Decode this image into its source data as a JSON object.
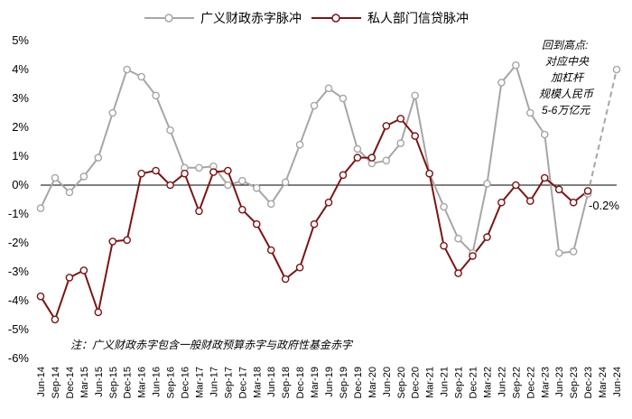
{
  "chart_data": {
    "type": "line",
    "ylim": [
      -6,
      5
    ],
    "y_ticks": [
      5,
      4,
      3,
      2,
      1,
      0,
      -1,
      -2,
      -3,
      -4,
      -5,
      -6
    ],
    "y_tick_labels": [
      "5%",
      "4%",
      "3%",
      "2%",
      "1%",
      "0%",
      "-1%",
      "-2%",
      "-3%",
      "-4%",
      "-5%",
      "-6%"
    ],
    "x_tick_labels": [
      "Jun-14",
      "Sep-14",
      "Dec-14",
      "Mar-15",
      "Jun-15",
      "Sep-15",
      "Dec-15",
      "Mar-16",
      "Jun-16",
      "Sep-16",
      "Dec-16",
      "Mar-17",
      "Jun-17",
      "Sep-17",
      "Dec-17",
      "Mar-18",
      "Jun-18",
      "Sep-18",
      "Dec-18",
      "Mar-19",
      "Jun-19",
      "Sep-19",
      "Dec-19",
      "Mar-20",
      "Jun-20",
      "Sep-20",
      "Dec-20",
      "Mar-21",
      "Jun-21",
      "Sep-21",
      "Dec-21",
      "Mar-22",
      "Jun-22",
      "Sep-22",
      "Dec-22",
      "Mar-23",
      "Jun-23",
      "Sep-23",
      "Dec-23",
      "Mar-24",
      "Jun-24"
    ],
    "grid": false,
    "legend_position": "top",
    "series": [
      {
        "name": "广义财政赤字脉冲",
        "color": "#a6a6a6",
        "values": [
          -0.8,
          0.25,
          -0.25,
          0.3,
          0.95,
          2.5,
          4.0,
          3.75,
          3.1,
          1.9,
          0.6,
          0.6,
          0.65,
          0.0,
          0.15,
          -0.1,
          -0.65,
          0.1,
          1.4,
          2.75,
          3.35,
          3.0,
          1.25,
          0.75,
          0.85,
          1.45,
          3.1,
          0.4,
          -0.75,
          -1.85,
          -2.35,
          0.05,
          3.55,
          4.15,
          2.5,
          1.75,
          -2.35,
          -2.3,
          -0.3,
          null,
          null
        ]
      },
      {
        "name": "私人部门信贷脉冲",
        "color": "#7a1515",
        "values": [
          -3.85,
          -4.65,
          -3.2,
          -2.95,
          -4.4,
          -1.95,
          -1.9,
          0.4,
          0.5,
          0.0,
          0.4,
          -0.9,
          0.45,
          0.5,
          -0.85,
          -1.35,
          -2.25,
          -3.25,
          -2.85,
          -1.35,
          -0.6,
          0.35,
          0.95,
          0.95,
          2.05,
          2.3,
          1.7,
          0.4,
          -2.1,
          -3.05,
          -2.45,
          -1.8,
          -0.6,
          0.0,
          -0.55,
          0.25,
          -0.15,
          -0.6,
          -0.2,
          null,
          null
        ]
      }
    ],
    "projection": {
      "from_index": 38,
      "from_value": -0.3,
      "to_index": 40,
      "to_value": 4.0,
      "color": "#a6a6a6"
    },
    "end_label": "-0.2%",
    "annotation_lines": [
      "回到高点:",
      "对应中央",
      "加杠杆",
      "规模人民币",
      "5-6万亿元"
    ],
    "note": "注：广义财政赤字包含一般财政预算赤字与政府性基金赤字"
  }
}
